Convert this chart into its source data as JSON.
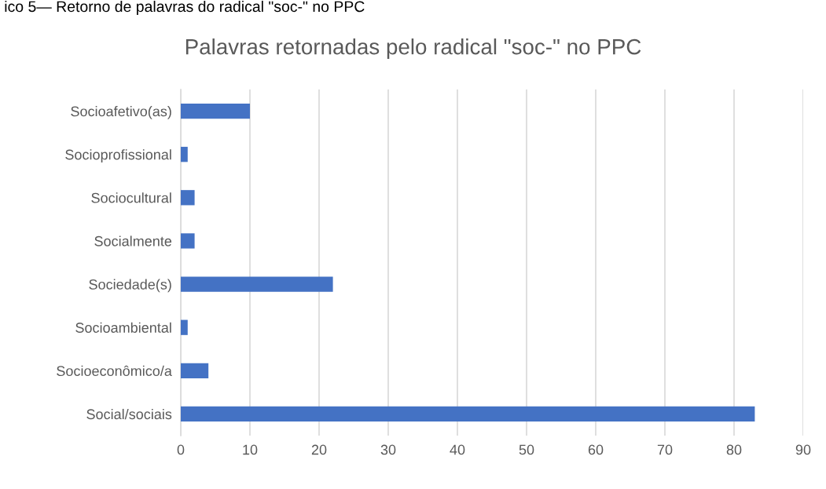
{
  "chart_data": {
    "type": "bar",
    "orientation": "horizontal",
    "title": "Palavras retornadas pelo radical \"soc-\" no PPC",
    "annotations": [
      "ico 5— Retorno de palavras do radical \"soc-\" no PPC"
    ],
    "categories": [
      "Socioafetivo(as)",
      "Socioprofissional",
      "Sociocultural",
      "Socialmente",
      "Sociedade(s)",
      "Socioambiental",
      "Socioeconômico/a",
      "Social/sociais"
    ],
    "values": [
      10,
      1,
      2,
      2,
      22,
      1,
      4,
      83
    ],
    "color": "#4472c4",
    "xlim": [
      0,
      90
    ],
    "xticks": [
      0,
      10,
      20,
      30,
      40,
      50,
      60,
      70,
      80,
      90
    ],
    "grid": "x",
    "legend": false
  }
}
